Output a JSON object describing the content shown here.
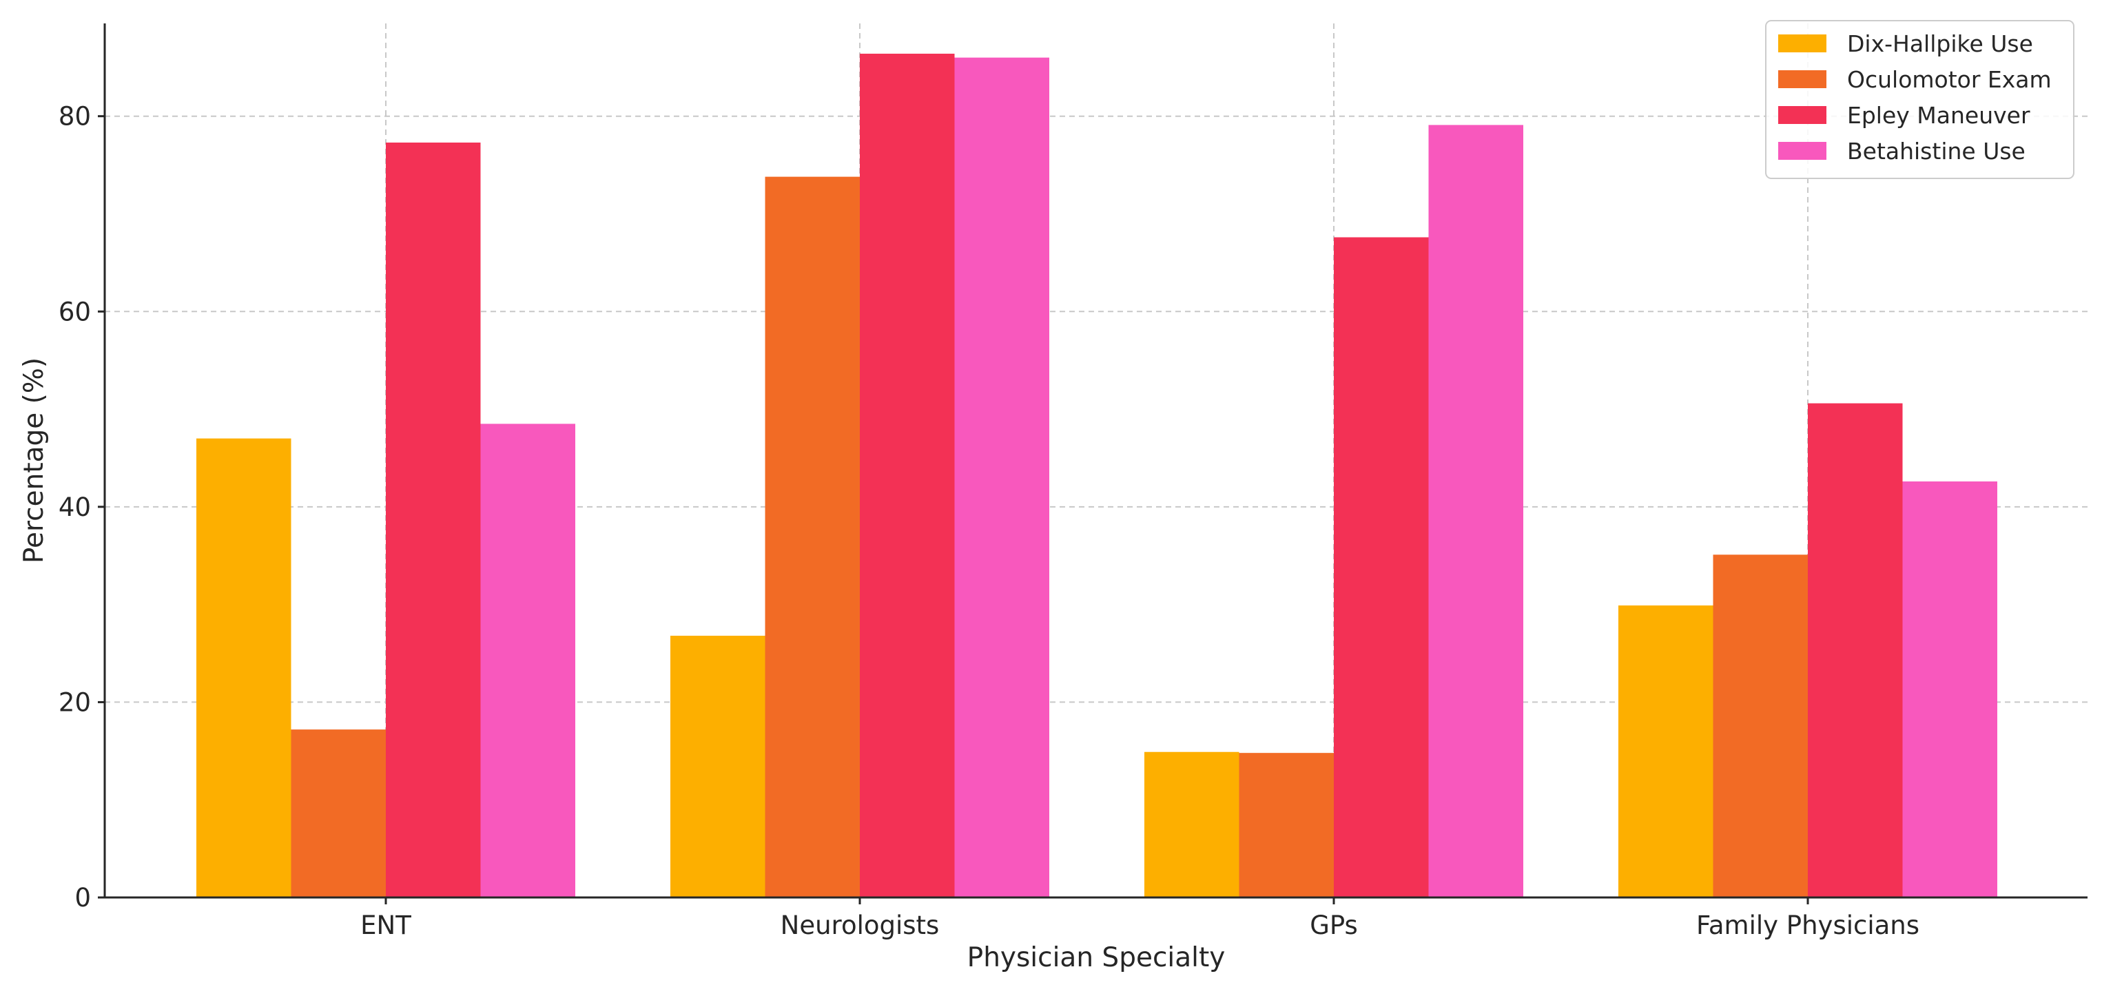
{
  "chart_data": {
    "type": "bar",
    "title": "",
    "xlabel": "Physician Specialty",
    "ylabel": "Percentage (%)",
    "categories": [
      "ENT",
      "Neurologists",
      "GPs",
      "Family Physicians"
    ],
    "ylim": [
      0,
      89.5
    ],
    "yticks": [
      0,
      20,
      40,
      60,
      80
    ],
    "grid": true,
    "legend_position": "top-right",
    "series": [
      {
        "name": "Dix-Hallpike Use",
        "color": "#fdaf00",
        "values": [
          47.0,
          26.8,
          14.9,
          29.9
        ]
      },
      {
        "name": "Oculomotor Exam",
        "color": "#f26b25",
        "values": [
          17.2,
          73.8,
          14.8,
          35.1
        ]
      },
      {
        "name": "Epley Maneuver",
        "color": "#f33155",
        "values": [
          77.3,
          86.4,
          67.6,
          50.6
        ]
      },
      {
        "name": "Betahistine Use",
        "color": "#f858bd",
        "values": [
          48.5,
          86.0,
          79.1,
          42.6
        ]
      }
    ]
  }
}
